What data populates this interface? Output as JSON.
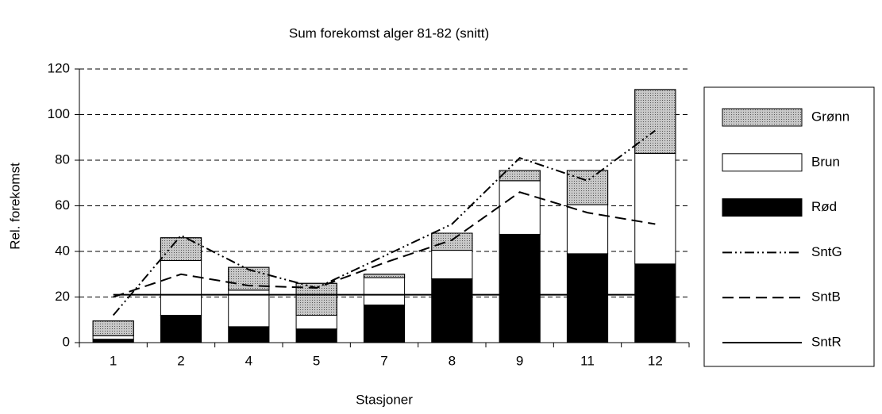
{
  "chart_data": {
    "type": "bar",
    "title": "Sum forekomst alger 81-82 (snitt)",
    "x_label": "Stasjoner",
    "y_label": "Rel. forekomst",
    "categories": [
      "1",
      "2",
      "4",
      "5",
      "7",
      "8",
      "9",
      "11",
      "12"
    ],
    "stacked": true,
    "series": [
      {
        "name": "Rød",
        "color": "#000000",
        "values": [
          1.5,
          12,
          7,
          6,
          16.5,
          28,
          47.5,
          39,
          34.5
        ]
      },
      {
        "name": "Brun",
        "color": "#ffffff",
        "values": [
          1.5,
          24,
          16,
          6,
          12,
          12.5,
          23.5,
          21.5,
          48.5
        ]
      },
      {
        "name": "Grønn",
        "color": "#c8c8c8",
        "values": [
          6.5,
          10,
          10,
          14,
          1.5,
          7.5,
          4.5,
          15,
          28
        ]
      },
      {
        "name": "SntG",
        "type": "line",
        "style": "dashdot",
        "color": "#000000",
        "values": [
          12,
          47,
          32,
          24,
          38,
          52,
          81,
          71,
          93
        ]
      },
      {
        "name": "SntB",
        "type": "line",
        "style": "dashed",
        "color": "#000000",
        "values": [
          20,
          30,
          25,
          24,
          35,
          45,
          66,
          57,
          52
        ]
      },
      {
        "name": "SntR",
        "type": "line",
        "style": "solid",
        "color": "#000000",
        "values": [
          21,
          21,
          21,
          21,
          21,
          21,
          21,
          21,
          21
        ]
      }
    ],
    "legend_order": [
      "Grønn",
      "Brun",
      "Rød",
      "SntG",
      "SntB",
      "SntR"
    ],
    "ylim": [
      0,
      120
    ],
    "yticks": [
      0,
      20,
      40,
      60,
      80,
      100,
      120
    ],
    "grid": true,
    "legend": "right"
  }
}
